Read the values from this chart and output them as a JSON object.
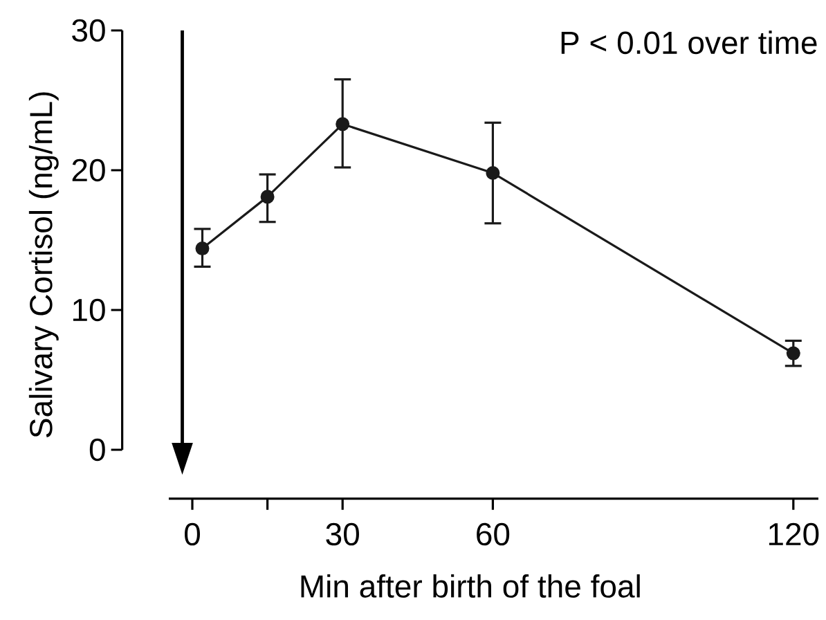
{
  "chart_data": {
    "type": "line",
    "xlabel": "Min after birth of the foal",
    "ylabel": "Salivary Cortisol (ng/mL)",
    "annotations": [
      "P < 0.01 over time"
    ],
    "x": [
      2,
      15,
      30,
      60,
      120
    ],
    "series": [
      {
        "color": "#1a1a1a",
        "values": [
          14.4,
          18.1,
          23.3,
          19.8,
          6.9
        ],
        "errors": [
          [
            13.1,
            15.8
          ],
          [
            16.3,
            19.7
          ],
          [
            20.2,
            26.5
          ],
          [
            16.2,
            23.4
          ],
          [
            6.0,
            7.8
          ]
        ]
      }
    ],
    "xlim": [
      -14,
      125
    ],
    "ylim": [
      -3.5,
      30
    ],
    "xticks": [
      0,
      {
        "value": 15,
        "label": null
      },
      30,
      60,
      120
    ],
    "yticks": [
      0,
      10,
      20,
      30
    ],
    "marker": "circle",
    "line_style": "solid",
    "ref_lines": [
      {
        "axis": "x",
        "value": -2
      }
    ],
    "grid": false
  }
}
